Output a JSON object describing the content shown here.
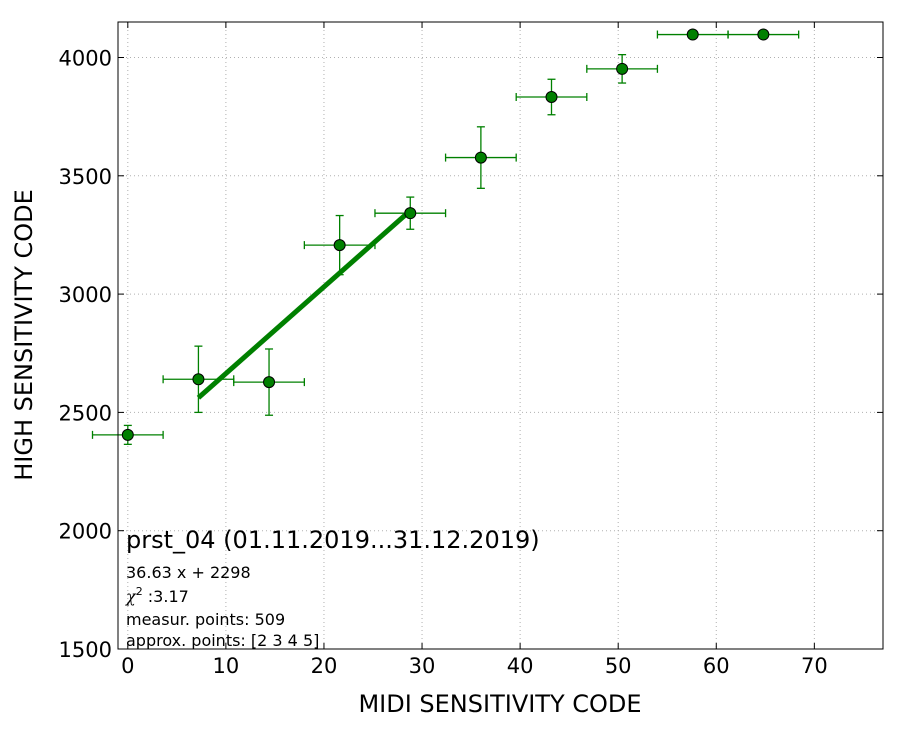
{
  "chart_data": {
    "type": "scatter",
    "xlabel": "MIDI SENSITIVITY CODE",
    "ylabel": "HIGH SENSITIVITY CODE",
    "xlim": [
      -1,
      77
    ],
    "ylim": [
      1500,
      4150
    ],
    "xticks": [
      0,
      10,
      20,
      30,
      40,
      50,
      60,
      70
    ],
    "yticks": [
      1500,
      2000,
      2500,
      3000,
      3500,
      4000
    ],
    "grid": true,
    "color": "#008000",
    "points": [
      {
        "x": 0.0,
        "y": 2405,
        "xerr": 3.6,
        "yerr": 40
      },
      {
        "x": 7.2,
        "y": 2640,
        "xerr": 3.6,
        "yerr": 140
      },
      {
        "x": 14.4,
        "y": 2628,
        "xerr": 3.6,
        "yerr": 140
      },
      {
        "x": 21.6,
        "y": 3207,
        "xerr": 3.6,
        "yerr": 125
      },
      {
        "x": 28.8,
        "y": 3342,
        "xerr": 3.6,
        "yerr": 68
      },
      {
        "x": 36.0,
        "y": 3577,
        "xerr": 3.6,
        "yerr": 130
      },
      {
        "x": 43.2,
        "y": 3833,
        "xerr": 3.6,
        "yerr": 75
      },
      {
        "x": 50.4,
        "y": 3952,
        "xerr": 3.6,
        "yerr": 60
      },
      {
        "x": 57.6,
        "y": 4097,
        "xerr": 3.6,
        "yerr": 0
      },
      {
        "x": 64.8,
        "y": 4097,
        "xerr": 3.6,
        "yerr": 0
      }
    ],
    "fit_line": {
      "x": [
        7.2,
        28.8
      ],
      "slope": 36.63,
      "intercept": 2298
    }
  },
  "annotation": {
    "title": "prst_04 (01.11.2019...31.12.2019)",
    "fit_equation": "36.63 x + 2298",
    "chi2_symbol": "χ",
    "chi2_sup": "2",
    "chi2_value": " :3.17",
    "measur_points": "measur. points: 509",
    "approx_points": "approx. points: [2 3 4 5]"
  }
}
